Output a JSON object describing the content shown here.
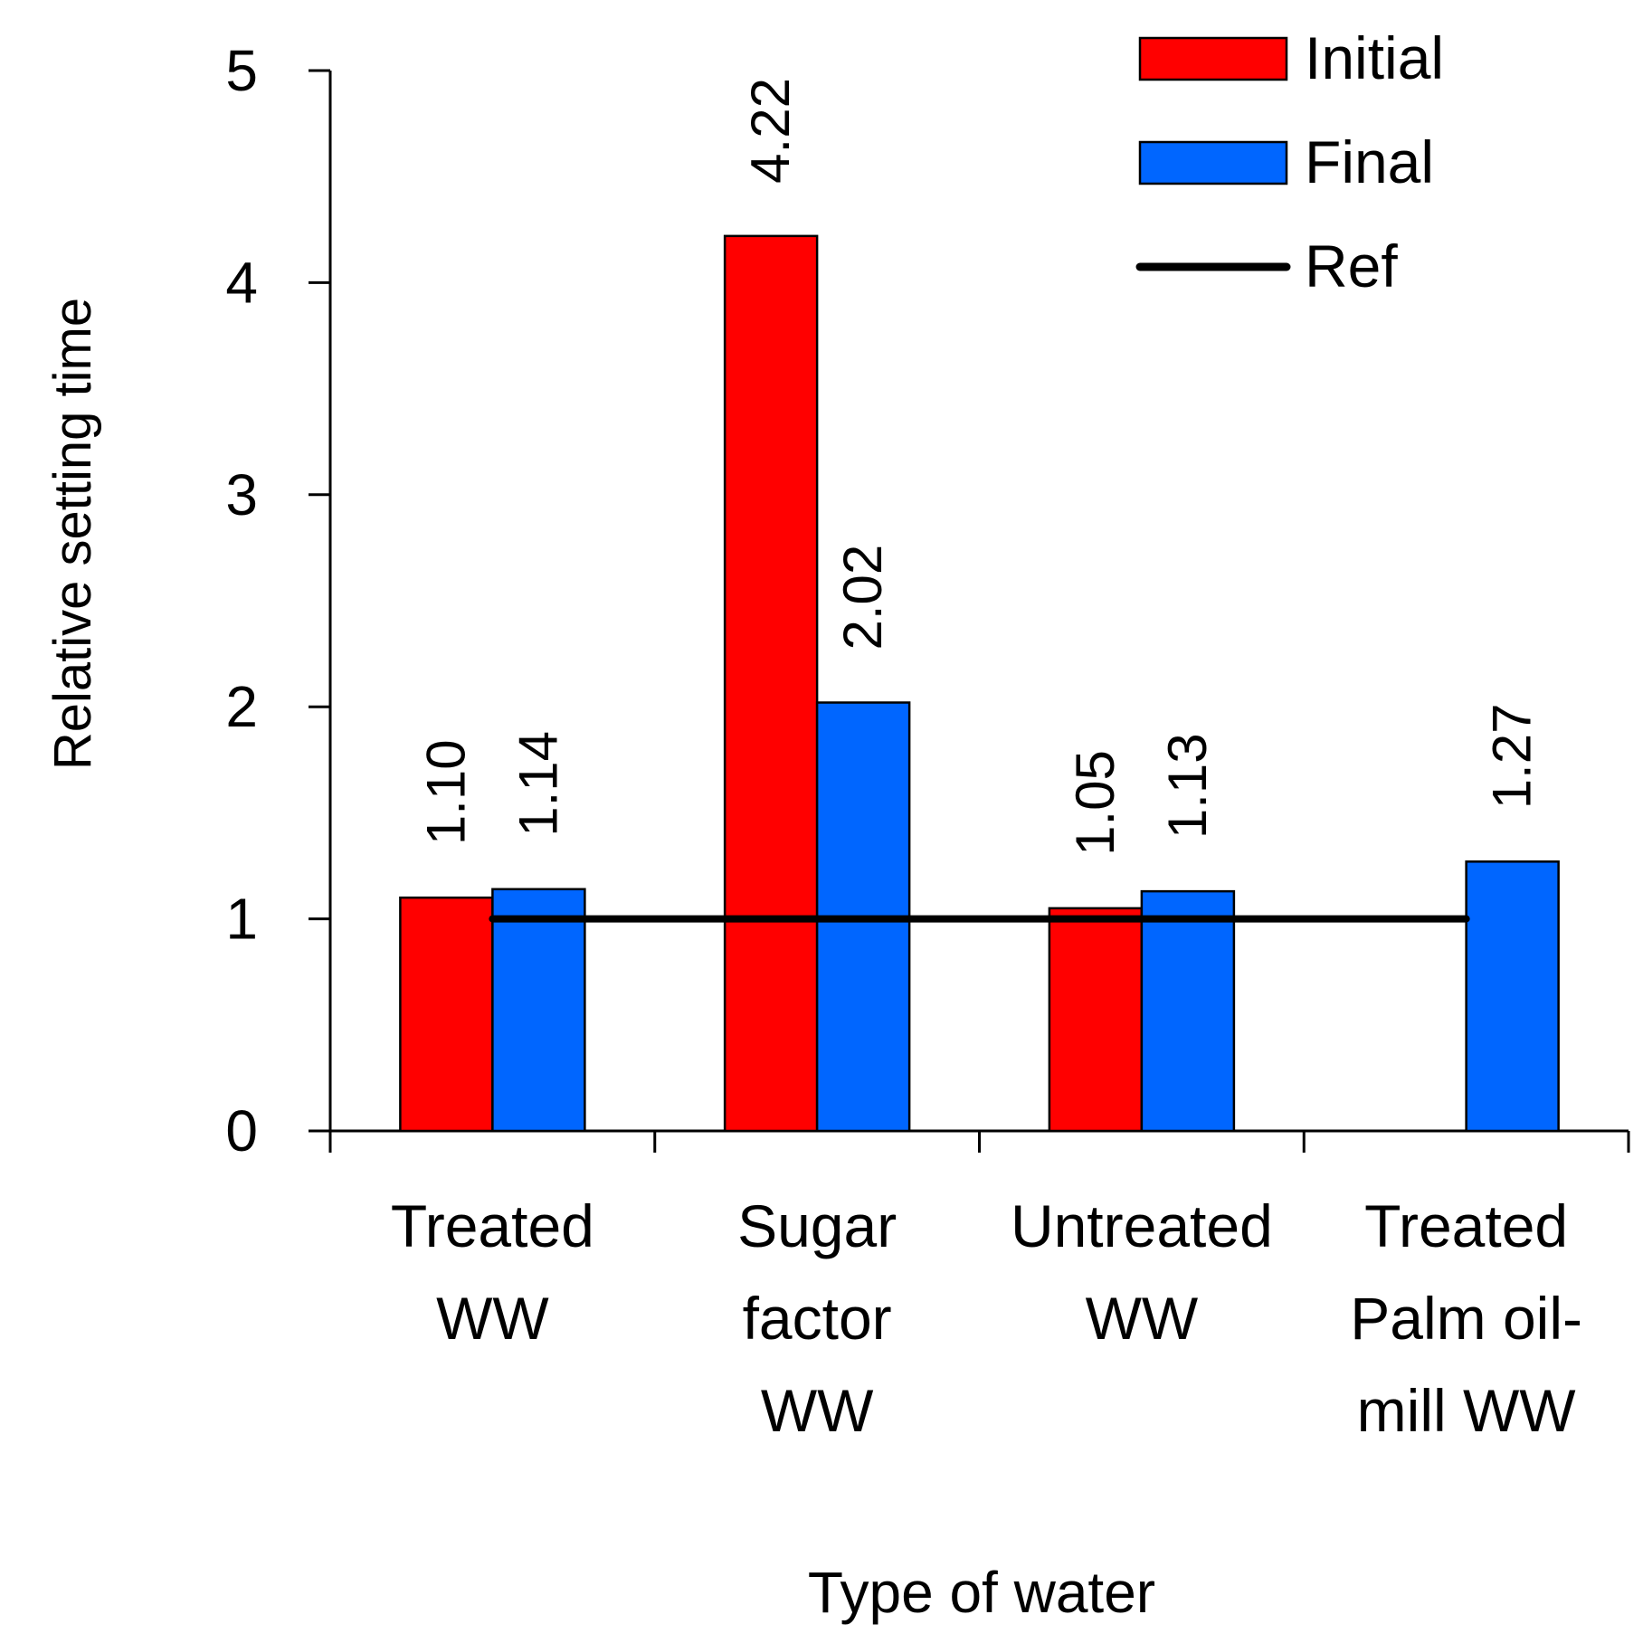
{
  "chart_data": {
    "type": "bar",
    "title": "",
    "xlabel": "Type of water",
    "ylabel": "Relative setting time",
    "ylim": [
      0,
      5
    ],
    "yticks": [
      0,
      1,
      2,
      3,
      4,
      5
    ],
    "categories": [
      [
        "Treated",
        "WW"
      ],
      [
        "Sugar",
        "factor",
        "WW"
      ],
      [
        "Untreated",
        "WW"
      ],
      [
        "Treated",
        "Palm oil-",
        "mill WW"
      ]
    ],
    "series": [
      {
        "name": "Initial",
        "color": "#ff0000",
        "values": [
          1.1,
          4.22,
          1.05,
          null
        ],
        "labels": [
          "1.10",
          "4.22",
          "1.05",
          null
        ]
      },
      {
        "name": "Final",
        "color": "#0066ff",
        "values": [
          1.14,
          2.02,
          1.13,
          1.27
        ],
        "labels": [
          "1.14",
          "2.02",
          "1.13",
          "1.27"
        ]
      }
    ],
    "reference": {
      "name": "Ref",
      "value": 1,
      "color": "#000000"
    },
    "legend": {
      "position": "top-right",
      "entries": [
        "Initial",
        "Final",
        "Ref"
      ]
    }
  }
}
